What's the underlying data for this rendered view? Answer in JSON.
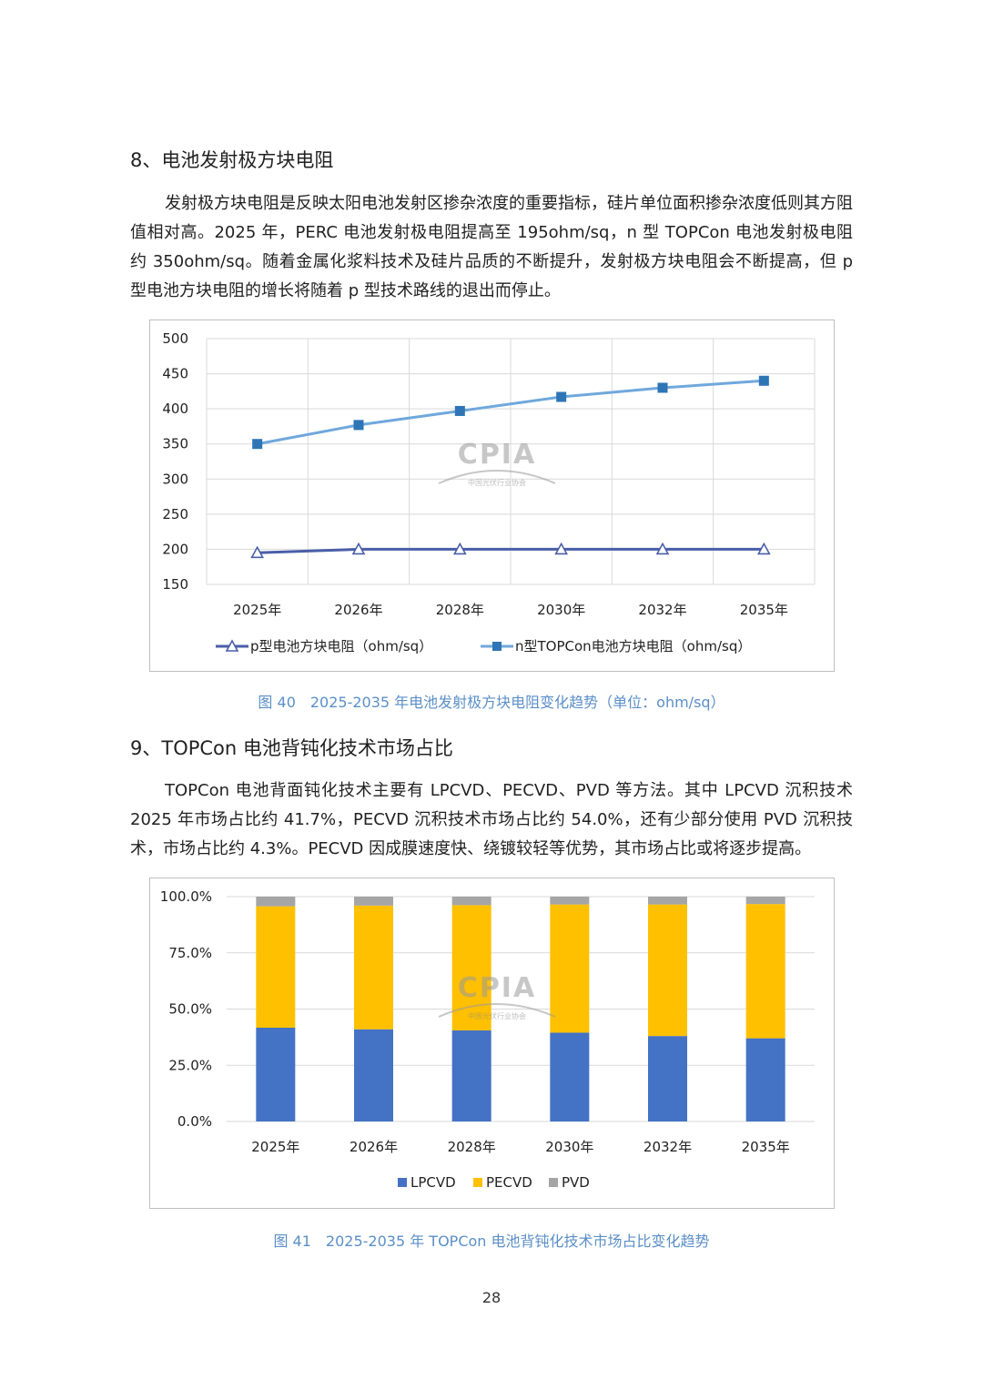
{
  "section8": {
    "title": "8、电池发射极方块电阻",
    "paragraph": "发射极方块电阻是反映太阳电池发射区掺杂浓度的重要指标，硅片单位面积掺杂浓度低则其方阻值相对高。2025 年，PERC 电池发射极电阻提高至 195ohm/sq，n 型 TOPCon 电池发射极电阻约 350ohm/sq。随着金属化浆料技术及硅片品质的不断提升，发射极方块电阻会不断提高，但 p 型电池方块电阻的增长将随着 p 型技术路线的退出而停止。"
  },
  "figure40": {
    "caption": "图 40　2025-2035 年电池发射极方块电阻变化趋势（单位：ohm/sq）",
    "watermark": {
      "logo_text": "CPIA",
      "org_text": "中国光伏行业协会"
    },
    "chart_data": {
      "type": "line",
      "categories": [
        "2025年",
        "2026年",
        "2028年",
        "2030年",
        "2032年",
        "2035年"
      ],
      "series": [
        {
          "name": "p型电池方块电阻（ohm/sq）",
          "values": [
            195,
            200,
            200,
            200,
            200,
            200
          ],
          "color": "#4a5ea8",
          "marker": "open-triangle"
        },
        {
          "name": "n型TOPCon电池方块电阻（ohm/sq）",
          "values": [
            350,
            377,
            397,
            417,
            430,
            440
          ],
          "color": "#6fa8dc",
          "marker": "filled-square",
          "marker_color": "#2e75b6"
        }
      ],
      "ylim": [
        150,
        500
      ],
      "yticks": [
        "500",
        "450",
        "400",
        "350",
        "300",
        "250",
        "200",
        "150"
      ],
      "ytick_values": [
        500,
        450,
        400,
        350,
        300,
        250,
        200,
        150
      ],
      "grid": true,
      "legend_position": "bottom"
    }
  },
  "section9": {
    "title": "9、TOPCon 电池背钝化技术市场占比",
    "paragraph": "TOPCon 电池背面钝化技术主要有 LPCVD、PECVD、PVD 等方法。其中 LPCVD 沉积技术2025 年市场占比约 41.7%，PECVD 沉积技术市场占比约 54.0%，还有少部分使用 PVD 沉积技术，市场占比约 4.3%。PECVD 因成膜速度快、绕镀较轻等优势，其市场占比或将逐步提高。"
  },
  "figure41": {
    "caption": "图 41　2025-2035 年 TOPCon 电池背钝化技术市场占比变化趋势",
    "watermark": {
      "logo_text": "CPIA",
      "org_text": "中国光伏行业协会"
    },
    "chart_data": {
      "type": "bar",
      "stacked": true,
      "categories": [
        "2025年",
        "2026年",
        "2028年",
        "2030年",
        "2032年",
        "2035年"
      ],
      "series": [
        {
          "name": "LPCVD",
          "values": [
            41.7,
            41.0,
            40.5,
            39.5,
            38.0,
            37.0
          ],
          "color": "#4472c4"
        },
        {
          "name": "PECVD",
          "values": [
            54.0,
            55.0,
            55.7,
            57.0,
            58.5,
            59.7
          ],
          "color": "#ffc000"
        },
        {
          "name": "PVD",
          "values": [
            4.3,
            4.0,
            3.8,
            3.5,
            3.5,
            3.3
          ],
          "color": "#a5a5a5"
        }
      ],
      "ylim": [
        0,
        100
      ],
      "yticks": [
        "100.0%",
        "75.0%",
        "50.0%",
        "25.0%",
        "0.0%"
      ],
      "ytick_values": [
        100,
        75,
        50,
        25,
        0
      ],
      "grid": true,
      "legend_position": "bottom"
    }
  },
  "page_number": "28"
}
